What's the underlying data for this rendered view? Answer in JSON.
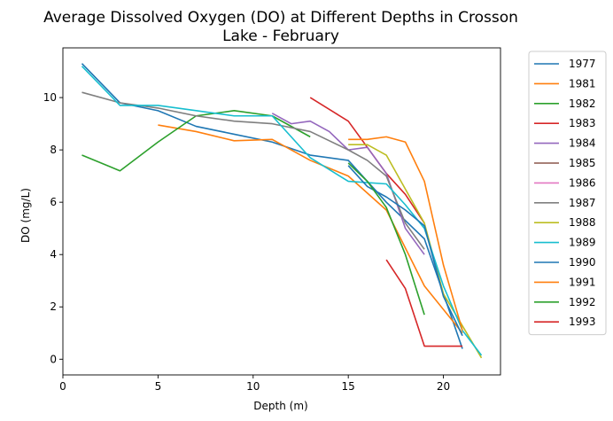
{
  "chart_data": {
    "type": "line",
    "title_lines": [
      "Average Dissolved Oxygen (DO) at Different Depths in Crosson",
      "Lake - February"
    ],
    "xlabel": "Depth (m)",
    "ylabel": "DO (mg/L)",
    "xlim": [
      0,
      23
    ],
    "ylim": [
      -0.6,
      11.9
    ],
    "xticks": [
      0,
      5,
      10,
      15,
      20
    ],
    "yticks": [
      0,
      2,
      4,
      6,
      8,
      10
    ],
    "grid": false,
    "legend_position": "outside-right",
    "series": [
      {
        "name": "1977",
        "color": "#1f77b4",
        "x": [
          1,
          3,
          5,
          7,
          9,
          11,
          13,
          15,
          17,
          19,
          21
        ],
        "y": [
          11.3,
          9.8,
          9.5,
          8.9,
          8.6,
          8.3,
          7.8,
          7.6,
          6.0,
          4.6,
          0.4
        ]
      },
      {
        "name": "1981",
        "color": "#ff7f0e",
        "x": [
          5,
          7,
          9,
          11,
          13,
          15,
          17,
          19,
          21
        ],
        "y": [
          8.95,
          8.7,
          8.35,
          8.4,
          7.6,
          7.0,
          5.7,
          2.8,
          1.0
        ]
      },
      {
        "name": "1982",
        "color": "#2ca02c",
        "x": [
          1,
          3,
          5,
          7,
          9,
          11,
          13
        ],
        "y": [
          7.8,
          7.2,
          8.3,
          9.3,
          9.5,
          9.3,
          8.5
        ]
      },
      {
        "name": "1983",
        "color": "#d62728",
        "x": [
          13,
          15,
          16,
          17,
          18,
          19
        ],
        "y": [
          10.0,
          9.1,
          8.1,
          7.1,
          6.3,
          5.2
        ]
      },
      {
        "name": "1984",
        "color": "#9467bd",
        "x": [
          11,
          12,
          13,
          14,
          15,
          16,
          17,
          18,
          19
        ],
        "y": [
          9.4,
          9.0,
          9.1,
          8.7,
          8.0,
          8.1,
          7.1,
          5.0,
          4.0
        ]
      },
      {
        "name": "1985",
        "color": "#8c564b",
        "x": [],
        "y": []
      },
      {
        "name": "1986",
        "color": "#e377c2",
        "x": [],
        "y": []
      },
      {
        "name": "1987",
        "color": "#7f7f7f",
        "x": [
          1,
          3,
          5,
          7,
          9,
          11,
          13,
          15,
          16,
          17,
          18,
          19
        ],
        "y": [
          10.2,
          9.8,
          9.6,
          9.3,
          9.1,
          9.0,
          8.7,
          8.0,
          7.6,
          7.0,
          5.2,
          4.2
        ]
      },
      {
        "name": "1988",
        "color": "#bcbd22",
        "x": [
          15,
          16,
          17,
          18,
          19,
          20,
          22
        ],
        "y": [
          8.2,
          8.2,
          7.8,
          6.5,
          5.2,
          2.5,
          0.05
        ]
      },
      {
        "name": "1989",
        "color": "#17becf",
        "x": [
          1,
          3,
          5,
          7,
          9,
          11,
          13,
          15,
          17,
          18,
          19,
          20,
          21,
          22
        ],
        "y": [
          11.2,
          9.7,
          9.7,
          9.5,
          9.3,
          9.3,
          7.7,
          6.8,
          6.7,
          5.9,
          5.0,
          2.8,
          1.1,
          0.15
        ]
      },
      {
        "name": "1990",
        "color": "#1f77b4",
        "x": [
          15,
          16,
          17,
          18,
          19,
          20,
          21
        ],
        "y": [
          7.4,
          6.6,
          6.2,
          5.7,
          5.1,
          2.4,
          0.9
        ]
      },
      {
        "name": "1991",
        "color": "#ff7f0e",
        "x": [
          15,
          16,
          17,
          18,
          19,
          20,
          21
        ],
        "y": [
          8.4,
          8.4,
          8.5,
          8.3,
          6.8,
          3.6,
          1.1
        ]
      },
      {
        "name": "1992",
        "color": "#2ca02c",
        "x": [
          15,
          16,
          17,
          18,
          19
        ],
        "y": [
          7.5,
          6.8,
          5.8,
          4.0,
          1.7
        ]
      },
      {
        "name": "1993",
        "color": "#d62728",
        "x": [
          17,
          18,
          19,
          20,
          21
        ],
        "y": [
          3.8,
          2.7,
          0.5,
          0.5,
          0.5
        ]
      }
    ]
  }
}
